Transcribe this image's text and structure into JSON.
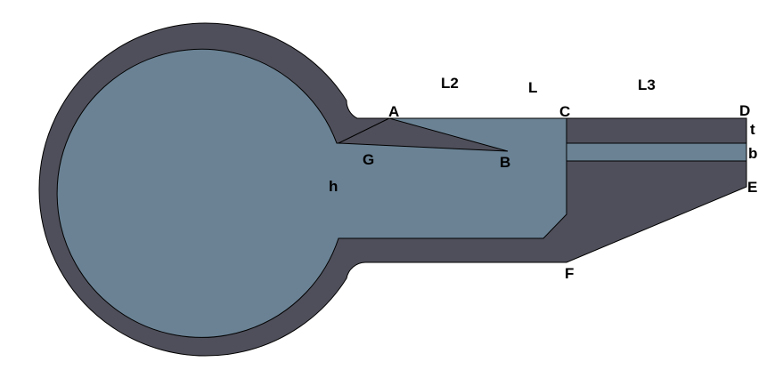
{
  "diagram": {
    "colors": {
      "outer": "#4f4f5b",
      "inner": "#6a8294",
      "outline": "#000000",
      "background": "#ffffff"
    },
    "labels": {
      "A": "A",
      "B": "B",
      "C": "C",
      "D": "D",
      "E": "E",
      "F": "F",
      "G": "G",
      "h": "h",
      "t": "t",
      "b": "b",
      "L": "L",
      "L2": "L2",
      "L3": "L3"
    }
  }
}
